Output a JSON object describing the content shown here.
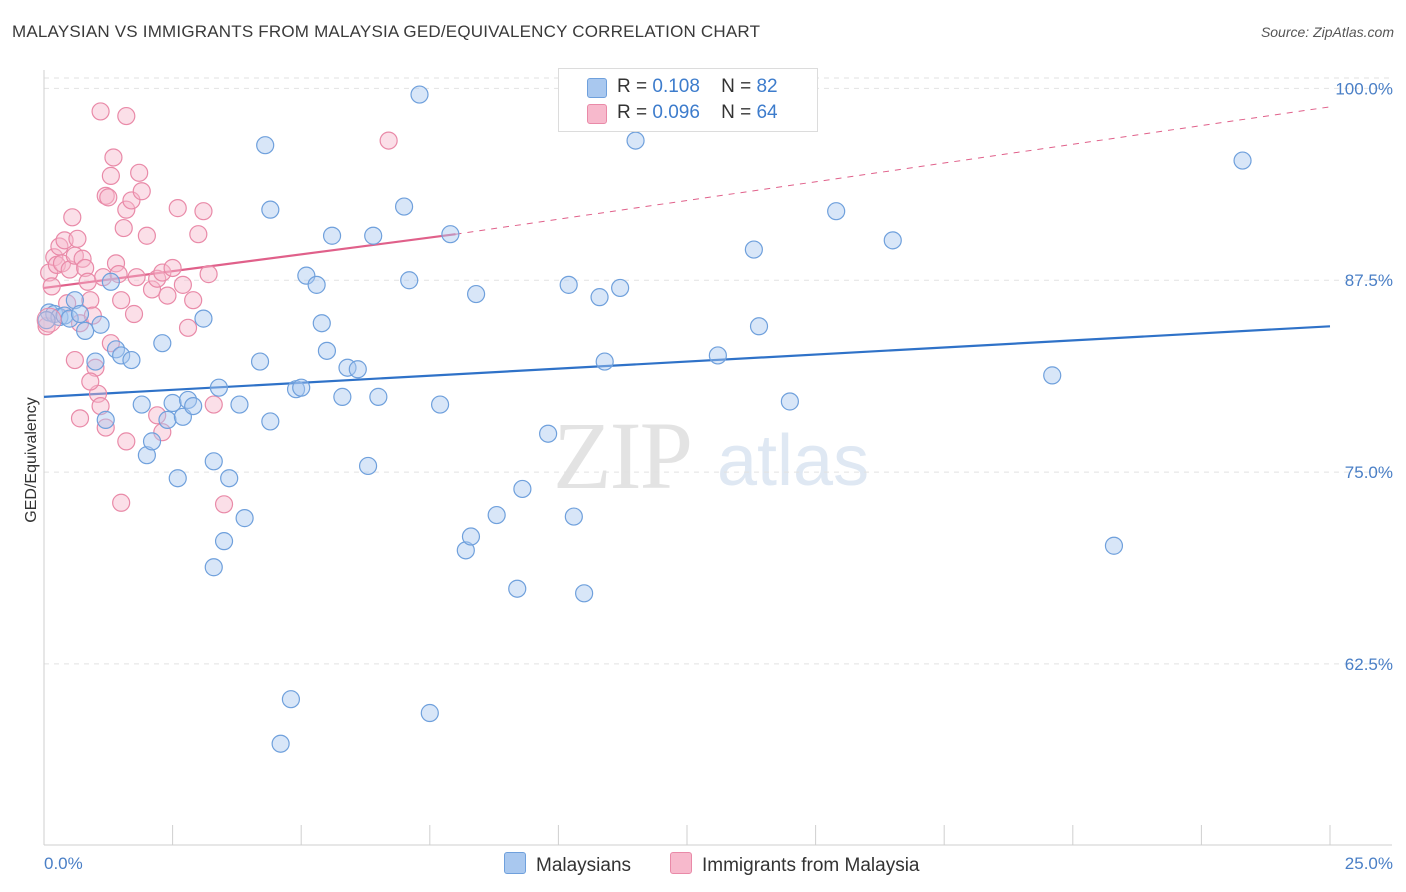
{
  "title": "MALAYSIAN VS IMMIGRANTS FROM MALAYSIA GED/EQUIVALENCY CORRELATION CHART",
  "source": "Source: ZipAtlas.com",
  "watermark": {
    "zip": "ZIP",
    "atlas": "atlas"
  },
  "legend": {
    "r_label": "R =",
    "n_label": "N =",
    "series1": {
      "r": "0.108",
      "n": "82"
    },
    "series2": {
      "r": "0.096",
      "n": "64"
    }
  },
  "bottom_legend": {
    "series1": "Malaysians",
    "series2": "Immigrants from Malaysia"
  },
  "colors": {
    "blue_fill": "#a9c8ef",
    "blue_stroke": "#6fa0dc",
    "blue_line": "#2f72c8",
    "pink_fill": "#f7b9cc",
    "pink_stroke": "#e98aa8",
    "pink_line": "#e0608a",
    "tick_text": "#4a7fc6",
    "grid": "#e2e2e2"
  },
  "chart_data": {
    "type": "scatter",
    "xlabel": "",
    "ylabel": "GED/Equivalency",
    "xlim": [
      0,
      25
    ],
    "ylim": [
      50.7,
      101.2
    ],
    "x_tick_labels": [
      {
        "v": 0,
        "label": "0.0%"
      },
      {
        "v": 25,
        "label": "25.0%"
      }
    ],
    "y_ticks": [
      {
        "v": 100,
        "label": "100.0%"
      },
      {
        "v": 87.5,
        "label": "87.5%"
      },
      {
        "v": 75,
        "label": "75.0%"
      },
      {
        "v": 62.5,
        "label": "62.5%"
      }
    ],
    "series": [
      {
        "name": "Malaysians",
        "color": "#6fa0dc",
        "trend": {
          "x": [
            0,
            25
          ],
          "y": [
            79.9,
            84.5
          ]
        },
        "points": [
          [
            0.1,
            85.4
          ],
          [
            0.2,
            85.3
          ],
          [
            0.3,
            85.1
          ],
          [
            0.4,
            85.2
          ],
          [
            0.5,
            85.0
          ],
          [
            0.6,
            86.2
          ],
          [
            0.7,
            85.3
          ],
          [
            0.8,
            84.2
          ],
          [
            1.0,
            82.2
          ],
          [
            1.1,
            84.6
          ],
          [
            1.3,
            87.4
          ],
          [
            1.4,
            83.0
          ],
          [
            1.5,
            82.6
          ],
          [
            1.7,
            82.3
          ],
          [
            1.9,
            79.4
          ],
          [
            1.2,
            78.4
          ],
          [
            2.0,
            76.1
          ],
          [
            2.1,
            77.0
          ],
          [
            2.3,
            83.4
          ],
          [
            2.4,
            78.4
          ],
          [
            2.5,
            79.5
          ],
          [
            2.6,
            74.6
          ],
          [
            2.7,
            78.6
          ],
          [
            2.8,
            79.7
          ],
          [
            2.9,
            79.3
          ],
          [
            3.1,
            85.0
          ],
          [
            3.3,
            68.8
          ],
          [
            3.3,
            75.7
          ],
          [
            3.4,
            80.5
          ],
          [
            3.5,
            70.5
          ],
          [
            3.6,
            74.6
          ],
          [
            3.8,
            79.4
          ],
          [
            3.9,
            72.0
          ],
          [
            4.2,
            82.2
          ],
          [
            4.3,
            96.3
          ],
          [
            4.4,
            92.1
          ],
          [
            4.4,
            78.3
          ],
          [
            4.6,
            57.3
          ],
          [
            4.8,
            60.2
          ],
          [
            4.9,
            80.4
          ],
          [
            5.0,
            80.5
          ],
          [
            5.1,
            87.8
          ],
          [
            5.3,
            87.2
          ],
          [
            5.4,
            84.7
          ],
          [
            5.5,
            82.9
          ],
          [
            5.6,
            90.4
          ],
          [
            5.8,
            79.9
          ],
          [
            5.9,
            81.8
          ],
          [
            6.1,
            81.7
          ],
          [
            6.3,
            75.4
          ],
          [
            6.4,
            90.4
          ],
          [
            6.5,
            79.9
          ],
          [
            7.0,
            92.3
          ],
          [
            7.1,
            87.5
          ],
          [
            7.3,
            99.6
          ],
          [
            7.5,
            59.3
          ],
          [
            7.7,
            79.4
          ],
          [
            7.9,
            90.5
          ],
          [
            8.2,
            69.9
          ],
          [
            8.3,
            70.8
          ],
          [
            8.4,
            86.6
          ],
          [
            8.8,
            72.2
          ],
          [
            9.2,
            67.4
          ],
          [
            9.3,
            73.9
          ],
          [
            9.8,
            77.5
          ],
          [
            10.2,
            87.2
          ],
          [
            10.3,
            72.1
          ],
          [
            10.5,
            67.1
          ],
          [
            10.8,
            86.4
          ],
          [
            10.9,
            82.2
          ],
          [
            11.2,
            87.0
          ],
          [
            11.5,
            96.6
          ],
          [
            13.1,
            82.6
          ],
          [
            13.8,
            89.5
          ],
          [
            13.9,
            84.5
          ],
          [
            14.5,
            79.6
          ],
          [
            15.4,
            92.0
          ],
          [
            16.5,
            90.1
          ],
          [
            19.6,
            81.3
          ],
          [
            20.8,
            70.2
          ],
          [
            23.3,
            95.3
          ],
          [
            0.05,
            84.9
          ]
        ]
      },
      {
        "name": "Immigrants from Malaysia",
        "color": "#e98aa8",
        "trend": {
          "x": [
            0,
            8.0
          ],
          "y": [
            87.0,
            90.5
          ]
        },
        "trend_dashed": {
          "x": [
            8.0,
            25
          ],
          "y": [
            90.5,
            98.8
          ]
        },
        "points": [
          [
            0.1,
            88.0
          ],
          [
            0.15,
            87.1
          ],
          [
            0.2,
            89.0
          ],
          [
            0.25,
            88.5
          ],
          [
            0.3,
            89.7
          ],
          [
            0.35,
            88.6
          ],
          [
            0.4,
            90.1
          ],
          [
            0.45,
            86.0
          ],
          [
            0.5,
            88.2
          ],
          [
            0.55,
            91.6
          ],
          [
            0.6,
            89.1
          ],
          [
            0.65,
            90.2
          ],
          [
            0.7,
            84.7
          ],
          [
            0.75,
            88.9
          ],
          [
            0.8,
            88.3
          ],
          [
            0.85,
            87.4
          ],
          [
            0.9,
            86.2
          ],
          [
            0.95,
            85.2
          ],
          [
            1.0,
            81.8
          ],
          [
            1.05,
            80.1
          ],
          [
            1.1,
            79.3
          ],
          [
            1.15,
            87.7
          ],
          [
            1.2,
            93.0
          ],
          [
            1.25,
            92.9
          ],
          [
            1.3,
            94.3
          ],
          [
            1.35,
            95.5
          ],
          [
            1.4,
            88.6
          ],
          [
            1.45,
            87.9
          ],
          [
            1.5,
            86.2
          ],
          [
            1.55,
            90.9
          ],
          [
            1.6,
            92.1
          ],
          [
            1.7,
            92.7
          ],
          [
            1.75,
            85.3
          ],
          [
            1.8,
            87.7
          ],
          [
            1.85,
            94.5
          ],
          [
            1.9,
            93.3
          ],
          [
            2.0,
            90.4
          ],
          [
            2.1,
            86.9
          ],
          [
            2.2,
            87.6
          ],
          [
            2.3,
            88.0
          ],
          [
            2.4,
            86.5
          ],
          [
            2.5,
            88.3
          ],
          [
            2.6,
            92.2
          ],
          [
            2.7,
            87.2
          ],
          [
            2.8,
            84.4
          ],
          [
            2.9,
            86.2
          ],
          [
            3.0,
            90.5
          ],
          [
            3.1,
            92.0
          ],
          [
            3.2,
            87.9
          ],
          [
            3.3,
            79.4
          ],
          [
            0.6,
            82.3
          ],
          [
            0.7,
            78.5
          ],
          [
            0.9,
            80.9
          ],
          [
            1.2,
            77.9
          ],
          [
            1.3,
            83.4
          ],
          [
            1.5,
            73.0
          ],
          [
            1.6,
            77.0
          ],
          [
            2.2,
            78.7
          ],
          [
            2.3,
            77.6
          ],
          [
            3.5,
            72.9
          ],
          [
            6.7,
            96.6
          ],
          [
            1.1,
            98.5
          ],
          [
            1.6,
            98.2
          ],
          [
            0.05,
            84.5
          ]
        ]
      }
    ]
  }
}
